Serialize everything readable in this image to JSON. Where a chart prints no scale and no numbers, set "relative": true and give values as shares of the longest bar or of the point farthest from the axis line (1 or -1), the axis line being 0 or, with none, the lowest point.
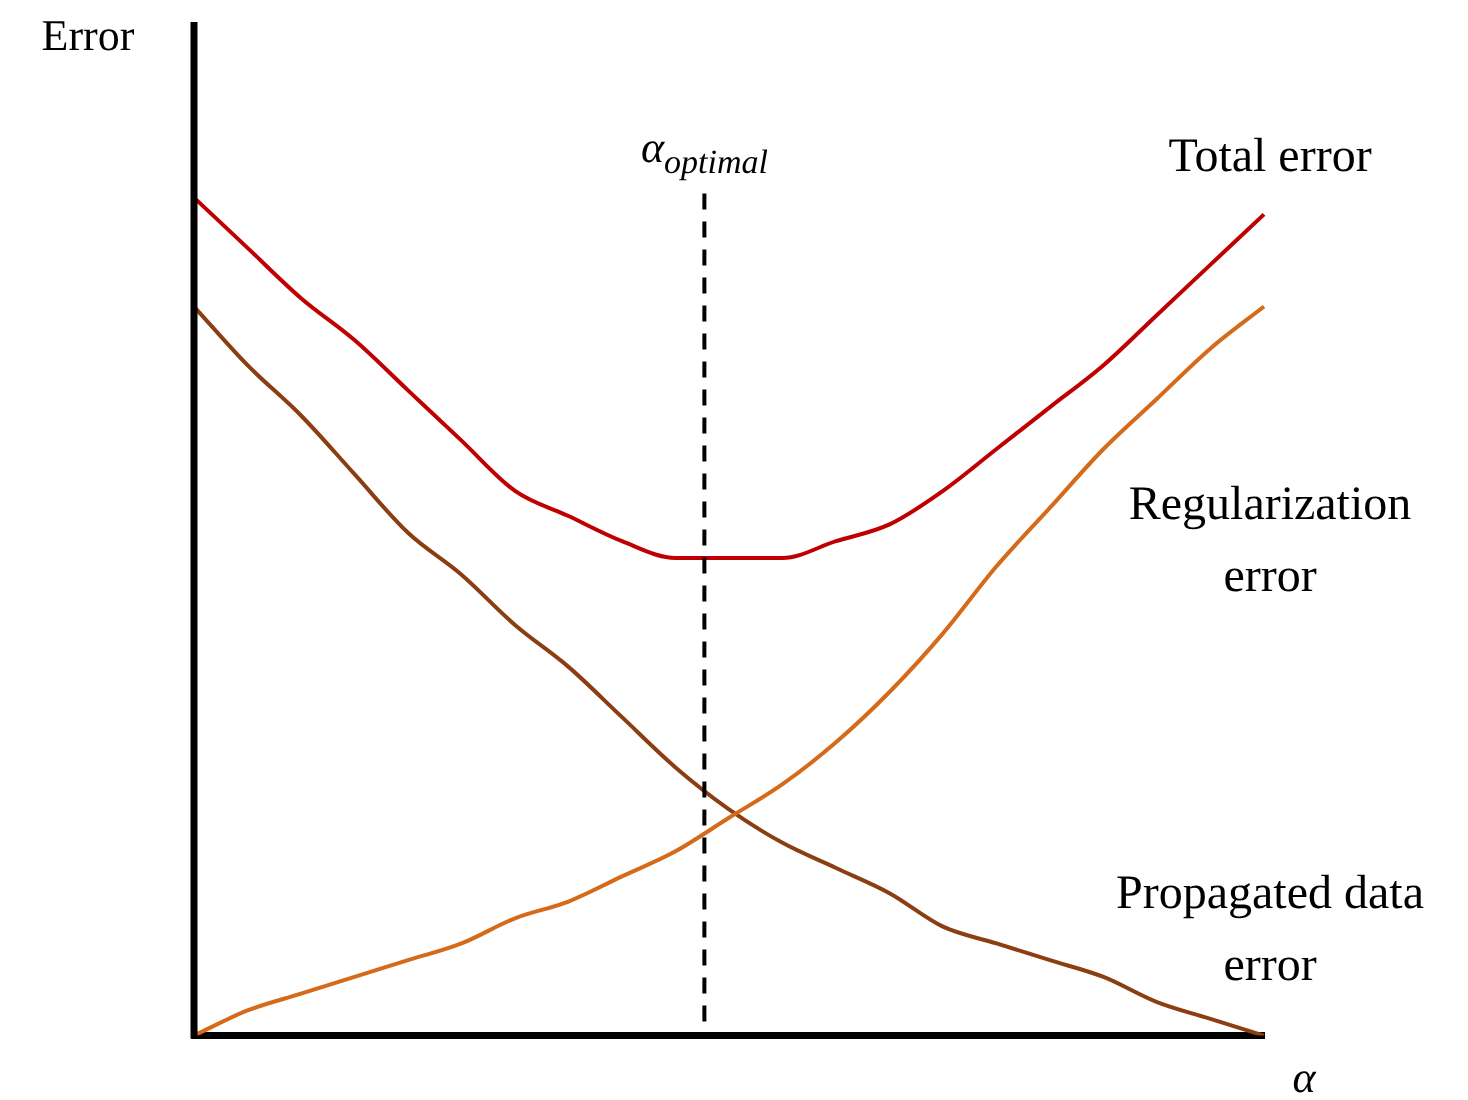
{
  "chart_data": {
    "type": "line",
    "relative": true,
    "xlabel": "α",
    "ylabel": "Error",
    "legend": false,
    "line_style": "solid",
    "marker": "none",
    "categories": [
      null,
      null,
      null,
      null,
      null,
      null,
      null,
      null,
      null,
      null,
      null,
      null,
      null,
      null,
      null,
      null,
      null,
      null,
      null,
      null,
      null
    ],
    "annotations": [
      "α$_{optimal}$"
    ],
    "series": [
      {
        "name": "Total error",
        "color": "#c00000",
        "values": [
          1.0,
          0.94,
          0.88,
          0.83,
          0.77,
          0.71,
          0.65,
          0.62,
          0.59,
          0.57,
          0.57,
          0.57,
          0.59,
          0.61,
          0.65,
          0.7,
          0.75,
          0.8,
          0.86,
          0.92,
          0.98
        ]
      },
      {
        "name": "Regularization error",
        "color": "#d46a1a",
        "values": [
          0,
          0.03,
          0.05,
          0.07,
          0.09,
          0.11,
          0.14,
          0.16,
          0.19,
          0.22,
          0.26,
          0.3,
          0.35,
          0.41,
          0.48,
          0.56,
          0.63,
          0.7,
          0.76,
          0.82,
          0.87
        ]
      },
      {
        "name": "Propagated data error",
        "color": "#8b3e12",
        "values": [
          0.87,
          0.8,
          0.74,
          0.67,
          0.6,
          0.55,
          0.49,
          0.44,
          0.38,
          0.32,
          0.27,
          0.23,
          0.2,
          0.17,
          0.13,
          0.11,
          0.09,
          0.07,
          0.04,
          0.02,
          0
        ]
      }
    ]
  }
}
